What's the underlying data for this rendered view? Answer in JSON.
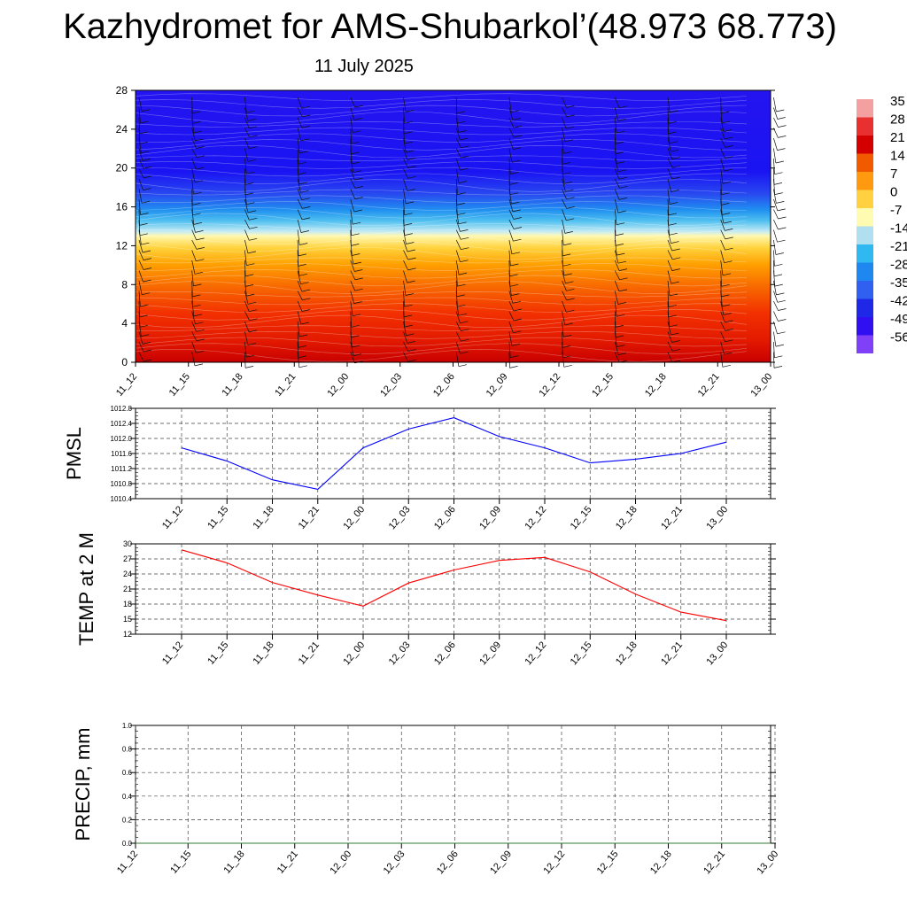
{
  "title": "Kazhydromet for AMS-Shubarkol’(48.973 68.773)",
  "subtitle": "11 July 2025",
  "chart_data": [
    {
      "type": "heatmap",
      "name": "temperature-profile",
      "x_tick_labels": [
        "11_12",
        "11_15",
        "11_18",
        "11_21",
        "12_00",
        "12_03",
        "12_06",
        "12_09",
        "12_12",
        "12_15",
        "12_18",
        "12_21",
        "13_00"
      ],
      "y_ticks": [
        0,
        4,
        8,
        12,
        16,
        20,
        24,
        28
      ],
      "ylim": [
        0,
        28
      ],
      "colorbar": {
        "labels": [
          "35",
          "28",
          "21",
          "14",
          "7",
          "0",
          "-7",
          "-14",
          "-21",
          "-28",
          "-35",
          "-42",
          "-49",
          "-56"
        ],
        "colors": [
          "#f4a0a0",
          "#e83030",
          "#d40000",
          "#f25a00",
          "#ff9a10",
          "#ffd040",
          "#fffbb0",
          "#b0e0f0",
          "#30b8f0",
          "#1e88f0",
          "#3060f0",
          "#2028e8",
          "#3010f0",
          "#8040f8"
        ]
      }
    },
    {
      "type": "line",
      "name": "pmsl",
      "ylabel": "PMSL",
      "x": [
        "11_12",
        "11_15",
        "11_18",
        "11_21",
        "12_00",
        "12_03",
        "12_06",
        "12_09",
        "12_12",
        "12_15",
        "12_18",
        "12_21",
        "13_00"
      ],
      "series": [
        {
          "values": [
            1011.75,
            1011.4,
            1010.9,
            1010.65,
            1011.75,
            1012.25,
            1012.55,
            1012.05,
            1011.75,
            1011.35,
            1011.45,
            1011.6,
            1011.9
          ],
          "color": "#0000ff"
        }
      ],
      "ylim": [
        1010.4,
        1012.8
      ],
      "y_ticks": [
        "1010.4",
        "1010.8",
        "1011.2",
        "1011.6",
        "1012.0",
        "1012.4",
        "1012.8"
      ],
      "grid": true
    },
    {
      "type": "line",
      "name": "temp2m",
      "ylabel": "TEMP at 2 M",
      "x": [
        "11_12",
        "11_15",
        "11_18",
        "11_21",
        "12_00",
        "12_03",
        "12_06",
        "12_09",
        "12_12",
        "12_15",
        "12_18",
        "12_21",
        "13_00"
      ],
      "series": [
        {
          "values": [
            28.8,
            26.2,
            22.3,
            19.8,
            17.6,
            22.2,
            24.8,
            26.7,
            27.3,
            24.4,
            20.0,
            16.4,
            14.7
          ],
          "color": "#ff0000"
        }
      ],
      "ylim": [
        12,
        30
      ],
      "y_ticks": [
        "12",
        "15",
        "18",
        "21",
        "24",
        "27",
        "30"
      ],
      "grid": true
    },
    {
      "type": "line",
      "name": "precip",
      "ylabel": "PRECIP, mm",
      "x": [
        "11_12",
        "11_15",
        "11_18",
        "11_21",
        "12_00",
        "12_03",
        "12_06",
        "12_09",
        "12_12",
        "12_15",
        "12_18",
        "12_21",
        "13_00"
      ],
      "series": [
        {
          "values": [
            0,
            0,
            0,
            0,
            0,
            0,
            0,
            0,
            0,
            0,
            0,
            0,
            0
          ],
          "color": "#2e7d32"
        }
      ],
      "ylim": [
        0,
        1
      ],
      "y_ticks": [
        "0.0",
        "0.2",
        "0.4",
        "0.6",
        "0.8",
        "1.0"
      ],
      "grid": true
    }
  ]
}
